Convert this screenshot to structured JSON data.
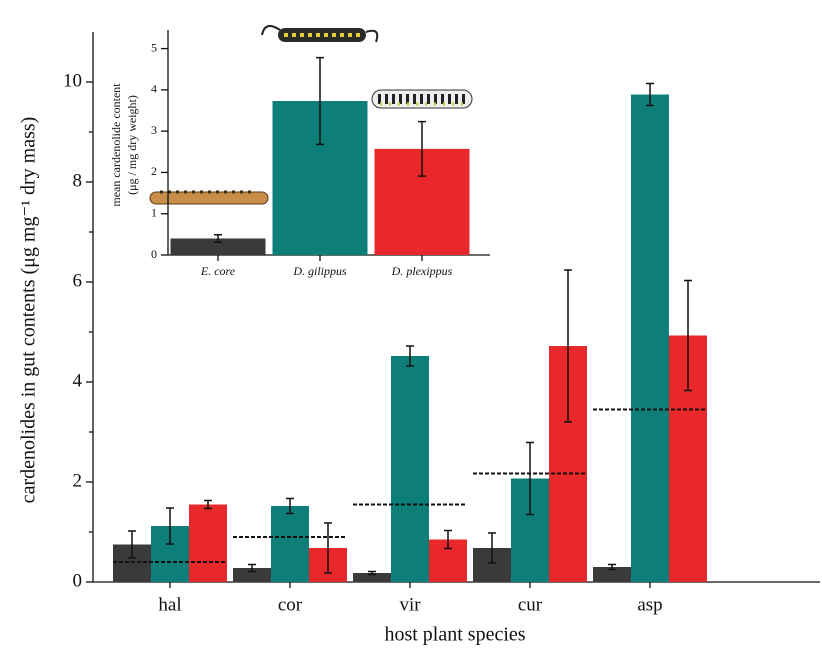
{
  "chart_data": [
    {
      "type": "bar",
      "categories": [
        "hal",
        "cor",
        "vir",
        "cur",
        "asp"
      ],
      "series": [
        {
          "color": "#3a3a3a",
          "values": [
            0.75,
            0.28,
            0.18,
            0.68,
            0.3
          ],
          "errors": [
            0.27,
            0.07,
            0.03,
            0.3,
            0.05
          ]
        },
        {
          "color": "#0e7f78",
          "values": [
            1.12,
            1.52,
            4.52,
            2.07,
            9.75
          ],
          "errors": [
            0.36,
            0.15,
            0.2,
            0.72,
            0.22
          ]
        },
        {
          "color": "#e8282a",
          "values": [
            1.55,
            0.68,
            0.85,
            4.72,
            4.93
          ],
          "errors": [
            0.08,
            0.5,
            0.18,
            1.52,
            1.1
          ]
        }
      ],
      "reference_values": [
        0.4,
        0.9,
        1.55,
        2.17,
        3.45
      ],
      "ylim": [
        0,
        11
      ],
      "yticks": [
        0,
        2,
        4,
        6,
        8,
        10
      ],
      "minor_yticks": [
        1,
        3,
        5,
        7,
        9
      ],
      "xlabel": "host plant species",
      "ylabel": "cardenolides in gut contents (μg mg⁻¹ dry mass)"
    },
    {
      "type": "bar",
      "categories": [
        "E. core",
        "D. gilippus",
        "D. plexippus"
      ],
      "values": [
        0.4,
        3.73,
        2.57
      ],
      "errors": [
        0.09,
        1.05,
        0.66
      ],
      "colors": [
        "#3a3a3a",
        "#0e7f78",
        "#e8282a"
      ],
      "ylim": [
        0,
        5.45
      ],
      "yticks": [
        0,
        1,
        2,
        3,
        4,
        5
      ],
      "ylabel": [
        "mean cardenolide content",
        "(μg / mg dry weight)"
      ]
    }
  ]
}
